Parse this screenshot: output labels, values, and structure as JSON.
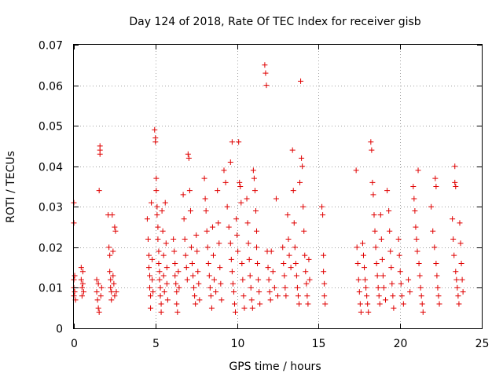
{
  "chart_data": {
    "type": "scatter",
    "title": "Day 124 of 2018, Rate Of TEC Index for receiver gisb",
    "xlabel": "GPS time / hours",
    "ylabel": "ROTI / TECUs",
    "xlim": [
      0,
      25
    ],
    "ylim": [
      0,
      0.07
    ],
    "x_ticks": [
      0,
      5,
      10,
      15,
      20,
      25
    ],
    "x_tick_labels": [
      "0",
      "5",
      "10",
      "15",
      "20",
      "25"
    ],
    "y_ticks": [
      0,
      0.01,
      0.02,
      0.03,
      0.04,
      0.05,
      0.06,
      0.07
    ],
    "y_tick_labels": [
      "0",
      "0.01",
      "0.02",
      "0.03",
      "0.04",
      "0.05",
      "0.06",
      "0.07"
    ],
    "grid": true,
    "marker": "+",
    "color": "#e00000",
    "series": [
      {
        "name": "ROTI",
        "points": [
          [
            0.0,
            0.031
          ],
          [
            0.0,
            0.026
          ],
          [
            0.0,
            0.012
          ],
          [
            0.0,
            0.01
          ],
          [
            0.0,
            0.008
          ],
          [
            0.05,
            0.013
          ],
          [
            0.05,
            0.009
          ],
          [
            0.1,
            0.007
          ],
          [
            0.45,
            0.015
          ],
          [
            0.45,
            0.012
          ],
          [
            0.5,
            0.01
          ],
          [
            0.5,
            0.008
          ],
          [
            0.55,
            0.014
          ],
          [
            0.55,
            0.011
          ],
          [
            0.6,
            0.009
          ],
          [
            1.4,
            0.012
          ],
          [
            1.4,
            0.009
          ],
          [
            1.45,
            0.007
          ],
          [
            1.5,
            0.011
          ],
          [
            1.5,
            0.005
          ],
          [
            1.55,
            0.004
          ],
          [
            1.55,
            0.034
          ],
          [
            1.6,
            0.045
          ],
          [
            1.6,
            0.044
          ],
          [
            1.6,
            0.043
          ],
          [
            1.65,
            0.008
          ],
          [
            1.7,
            0.01
          ],
          [
            2.1,
            0.028
          ],
          [
            2.15,
            0.02
          ],
          [
            2.2,
            0.018
          ],
          [
            2.2,
            0.014
          ],
          [
            2.25,
            0.012
          ],
          [
            2.25,
            0.01
          ],
          [
            2.3,
            0.009
          ],
          [
            2.3,
            0.007
          ],
          [
            2.35,
            0.028
          ],
          [
            2.4,
            0.019
          ],
          [
            2.4,
            0.013
          ],
          [
            2.45,
            0.011
          ],
          [
            2.5,
            0.008
          ],
          [
            2.5,
            0.025
          ],
          [
            2.55,
            0.024
          ],
          [
            2.6,
            0.009
          ],
          [
            4.5,
            0.027
          ],
          [
            4.55,
            0.022
          ],
          [
            4.6,
            0.018
          ],
          [
            4.6,
            0.015
          ],
          [
            4.65,
            0.013
          ],
          [
            4.65,
            0.01
          ],
          [
            4.7,
            0.008
          ],
          [
            4.7,
            0.005
          ],
          [
            4.75,
            0.031
          ],
          [
            4.8,
            0.017
          ],
          [
            4.8,
            0.012
          ],
          [
            4.85,
            0.009
          ],
          [
            4.95,
            0.049
          ],
          [
            5.0,
            0.047
          ],
          [
            5.0,
            0.046
          ],
          [
            5.05,
            0.037
          ],
          [
            5.05,
            0.034
          ],
          [
            5.1,
            0.03
          ],
          [
            5.1,
            0.028
          ],
          [
            5.15,
            0.025
          ],
          [
            5.15,
            0.022
          ],
          [
            5.2,
            0.019
          ],
          [
            5.2,
            0.016
          ],
          [
            5.25,
            0.014
          ],
          [
            5.25,
            0.012
          ],
          [
            5.3,
            0.01
          ],
          [
            5.3,
            0.008
          ],
          [
            5.35,
            0.006
          ],
          [
            5.35,
            0.004
          ],
          [
            5.4,
            0.029
          ],
          [
            5.45,
            0.024
          ],
          [
            5.5,
            0.018
          ],
          [
            5.5,
            0.013
          ],
          [
            5.55,
            0.009
          ],
          [
            5.6,
            0.031
          ],
          [
            5.65,
            0.021
          ],
          [
            5.7,
            0.015
          ],
          [
            5.7,
            0.011
          ],
          [
            5.75,
            0.007
          ],
          [
            6.1,
            0.022
          ],
          [
            6.15,
            0.019
          ],
          [
            6.2,
            0.016
          ],
          [
            6.2,
            0.013
          ],
          [
            6.25,
            0.011
          ],
          [
            6.3,
            0.009
          ],
          [
            6.3,
            0.006
          ],
          [
            6.35,
            0.004
          ],
          [
            6.4,
            0.014
          ],
          [
            6.45,
            0.01
          ],
          [
            6.7,
            0.033
          ],
          [
            6.75,
            0.027
          ],
          [
            6.8,
            0.022
          ],
          [
            6.85,
            0.018
          ],
          [
            6.9,
            0.015
          ],
          [
            6.95,
            0.012
          ],
          [
            7.0,
            0.043
          ],
          [
            7.05,
            0.042
          ],
          [
            7.1,
            0.034
          ],
          [
            7.15,
            0.029
          ],
          [
            7.2,
            0.02
          ],
          [
            7.25,
            0.016
          ],
          [
            7.3,
            0.013
          ],
          [
            7.35,
            0.01
          ],
          [
            7.4,
            0.008
          ],
          [
            7.45,
            0.006
          ],
          [
            7.5,
            0.023
          ],
          [
            7.55,
            0.019
          ],
          [
            7.6,
            0.014
          ],
          [
            7.65,
            0.011
          ],
          [
            7.7,
            0.007
          ],
          [
            8.0,
            0.037
          ],
          [
            8.05,
            0.032
          ],
          [
            8.1,
            0.029
          ],
          [
            8.15,
            0.024
          ],
          [
            8.2,
            0.02
          ],
          [
            8.25,
            0.016
          ],
          [
            8.3,
            0.013
          ],
          [
            8.35,
            0.01
          ],
          [
            8.4,
            0.008
          ],
          [
            8.45,
            0.005
          ],
          [
            8.5,
            0.025
          ],
          [
            8.55,
            0.018
          ],
          [
            8.6,
            0.012
          ],
          [
            8.7,
            0.009
          ],
          [
            8.8,
            0.034
          ],
          [
            8.85,
            0.026
          ],
          [
            8.9,
            0.021
          ],
          [
            8.95,
            0.015
          ],
          [
            9.0,
            0.011
          ],
          [
            9.05,
            0.007
          ],
          [
            9.2,
            0.039
          ],
          [
            9.3,
            0.036
          ],
          [
            9.4,
            0.03
          ],
          [
            9.5,
            0.025
          ],
          [
            9.6,
            0.041
          ],
          [
            9.6,
            0.021
          ],
          [
            9.65,
            0.017
          ],
          [
            9.7,
            0.046
          ],
          [
            9.7,
            0.014
          ],
          [
            9.75,
            0.011
          ],
          [
            9.8,
            0.009
          ],
          [
            9.85,
            0.006
          ],
          [
            9.9,
            0.004
          ],
          [
            9.95,
            0.027
          ],
          [
            10.0,
            0.023
          ],
          [
            10.05,
            0.019
          ],
          [
            10.1,
            0.046
          ],
          [
            10.15,
            0.036
          ],
          [
            10.2,
            0.035
          ],
          [
            10.25,
            0.031
          ],
          [
            10.3,
            0.016
          ],
          [
            10.35,
            0.012
          ],
          [
            10.4,
            0.008
          ],
          [
            10.45,
            0.005
          ],
          [
            10.6,
            0.032
          ],
          [
            10.65,
            0.026
          ],
          [
            10.7,
            0.021
          ],
          [
            10.75,
            0.017
          ],
          [
            10.8,
            0.013
          ],
          [
            10.85,
            0.01
          ],
          [
            10.9,
            0.007
          ],
          [
            10.95,
            0.005
          ],
          [
            11.0,
            0.039
          ],
          [
            11.05,
            0.037
          ],
          [
            11.1,
            0.034
          ],
          [
            11.15,
            0.029
          ],
          [
            11.2,
            0.024
          ],
          [
            11.2,
            0.02
          ],
          [
            11.25,
            0.016
          ],
          [
            11.3,
            0.012
          ],
          [
            11.35,
            0.009
          ],
          [
            11.4,
            0.006
          ],
          [
            11.7,
            0.065
          ],
          [
            11.75,
            0.063
          ],
          [
            11.8,
            0.06
          ],
          [
            11.85,
            0.019
          ],
          [
            11.9,
            0.015
          ],
          [
            11.95,
            0.012
          ],
          [
            12.0,
            0.009
          ],
          [
            12.05,
            0.007
          ],
          [
            12.1,
            0.019
          ],
          [
            12.2,
            0.014
          ],
          [
            12.3,
            0.01
          ],
          [
            12.4,
            0.032
          ],
          [
            12.5,
            0.008
          ],
          [
            12.8,
            0.02
          ],
          [
            12.85,
            0.016
          ],
          [
            12.9,
            0.013
          ],
          [
            12.95,
            0.01
          ],
          [
            13.0,
            0.008
          ],
          [
            13.1,
            0.028
          ],
          [
            13.15,
            0.022
          ],
          [
            13.2,
            0.018
          ],
          [
            13.3,
            0.015
          ],
          [
            13.4,
            0.044
          ],
          [
            13.45,
            0.034
          ],
          [
            13.5,
            0.026
          ],
          [
            13.55,
            0.02
          ],
          [
            13.6,
            0.016
          ],
          [
            13.65,
            0.013
          ],
          [
            13.7,
            0.01
          ],
          [
            13.75,
            0.008
          ],
          [
            13.8,
            0.006
          ],
          [
            13.85,
            0.036
          ],
          [
            13.9,
            0.061
          ],
          [
            13.95,
            0.042
          ],
          [
            14.0,
            0.04
          ],
          [
            14.05,
            0.03
          ],
          [
            14.1,
            0.024
          ],
          [
            14.15,
            0.018
          ],
          [
            14.2,
            0.014
          ],
          [
            14.25,
            0.011
          ],
          [
            14.3,
            0.008
          ],
          [
            14.35,
            0.006
          ],
          [
            14.4,
            0.017
          ],
          [
            14.45,
            0.012
          ],
          [
            15.2,
            0.03
          ],
          [
            15.25,
            0.028
          ],
          [
            15.3,
            0.018
          ],
          [
            15.3,
            0.014
          ],
          [
            15.35,
            0.011
          ],
          [
            15.35,
            0.008
          ],
          [
            15.4,
            0.006
          ],
          [
            17.3,
            0.039
          ],
          [
            17.35,
            0.02
          ],
          [
            17.4,
            0.016
          ],
          [
            17.45,
            0.012
          ],
          [
            17.5,
            0.009
          ],
          [
            17.55,
            0.006
          ],
          [
            17.6,
            0.004
          ],
          [
            17.7,
            0.021
          ],
          [
            17.75,
            0.018
          ],
          [
            17.8,
            0.015
          ],
          [
            17.85,
            0.012
          ],
          [
            17.9,
            0.01
          ],
          [
            17.95,
            0.008
          ],
          [
            18.0,
            0.006
          ],
          [
            18.05,
            0.004
          ],
          [
            18.2,
            0.046
          ],
          [
            18.25,
            0.044
          ],
          [
            18.3,
            0.036
          ],
          [
            18.35,
            0.033
          ],
          [
            18.4,
            0.028
          ],
          [
            18.45,
            0.024
          ],
          [
            18.5,
            0.02
          ],
          [
            18.55,
            0.016
          ],
          [
            18.6,
            0.013
          ],
          [
            18.65,
            0.01
          ],
          [
            18.7,
            0.008
          ],
          [
            18.75,
            0.006
          ],
          [
            18.8,
            0.028
          ],
          [
            18.85,
            0.022
          ],
          [
            18.9,
            0.017
          ],
          [
            18.95,
            0.013
          ],
          [
            19.0,
            0.01
          ],
          [
            19.1,
            0.007
          ],
          [
            19.2,
            0.034
          ],
          [
            19.3,
            0.029
          ],
          [
            19.35,
            0.024
          ],
          [
            19.4,
            0.019
          ],
          [
            19.45,
            0.015
          ],
          [
            19.5,
            0.011
          ],
          [
            19.55,
            0.008
          ],
          [
            19.6,
            0.005
          ],
          [
            19.9,
            0.022
          ],
          [
            19.95,
            0.018
          ],
          [
            20.0,
            0.014
          ],
          [
            20.05,
            0.011
          ],
          [
            20.1,
            0.008
          ],
          [
            20.2,
            0.006
          ],
          [
            20.5,
            0.012
          ],
          [
            20.6,
            0.009
          ],
          [
            20.8,
            0.035
          ],
          [
            20.85,
            0.032
          ],
          [
            20.9,
            0.029
          ],
          [
            20.95,
            0.025
          ],
          [
            21.0,
            0.022
          ],
          [
            21.05,
            0.019
          ],
          [
            21.1,
            0.039
          ],
          [
            21.15,
            0.016
          ],
          [
            21.2,
            0.013
          ],
          [
            21.25,
            0.01
          ],
          [
            21.3,
            0.008
          ],
          [
            21.35,
            0.006
          ],
          [
            21.4,
            0.004
          ],
          [
            21.9,
            0.03
          ],
          [
            22.0,
            0.024
          ],
          [
            22.1,
            0.02
          ],
          [
            22.15,
            0.037
          ],
          [
            22.2,
            0.035
          ],
          [
            22.2,
            0.016
          ],
          [
            22.25,
            0.013
          ],
          [
            22.3,
            0.01
          ],
          [
            22.35,
            0.008
          ],
          [
            22.4,
            0.006
          ],
          [
            23.2,
            0.027
          ],
          [
            23.25,
            0.022
          ],
          [
            23.3,
            0.018
          ],
          [
            23.35,
            0.04
          ],
          [
            23.35,
            0.036
          ],
          [
            23.4,
            0.035
          ],
          [
            23.4,
            0.014
          ],
          [
            23.45,
            0.012
          ],
          [
            23.5,
            0.01
          ],
          [
            23.55,
            0.008
          ],
          [
            23.6,
            0.006
          ],
          [
            23.65,
            0.026
          ],
          [
            23.7,
            0.021
          ],
          [
            23.75,
            0.016
          ],
          [
            23.8,
            0.012
          ],
          [
            23.85,
            0.009
          ]
        ]
      }
    ]
  }
}
